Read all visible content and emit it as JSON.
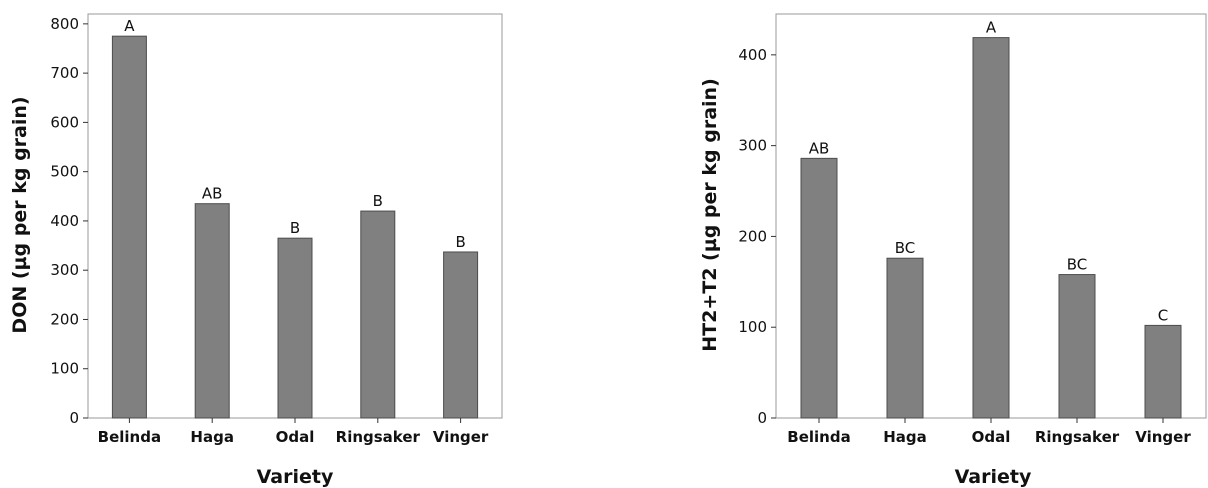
{
  "chart_data": [
    {
      "type": "bar",
      "categories": [
        "Belinda",
        "Haga",
        "Odal",
        "Ringsaker",
        "Vinger"
      ],
      "values": [
        775,
        435,
        365,
        420,
        337
      ],
      "data_labels": [
        "A",
        "AB",
        "B",
        "B",
        "B"
      ],
      "xlabel": "Variety",
      "ylabel": "DON (µg per kg grain)",
      "ylim": [
        0,
        820
      ],
      "yticks": [
        0,
        100,
        200,
        300,
        400,
        500,
        600,
        700,
        800
      ],
      "bar_color": "#808080",
      "grid": false
    },
    {
      "type": "bar",
      "categories": [
        "Belinda",
        "Haga",
        "Odal",
        "Ringsaker",
        "Vinger"
      ],
      "values": [
        286,
        176,
        419,
        158,
        102
      ],
      "data_labels": [
        "AB",
        "BC",
        "A",
        "BC",
        "C"
      ],
      "xlabel": "Variety",
      "ylabel": "HT2+T2 (µg per kg grain)",
      "ylim": [
        0,
        445
      ],
      "yticks": [
        0,
        100,
        200,
        300,
        400
      ],
      "bar_color": "#808080",
      "grid": false
    }
  ]
}
